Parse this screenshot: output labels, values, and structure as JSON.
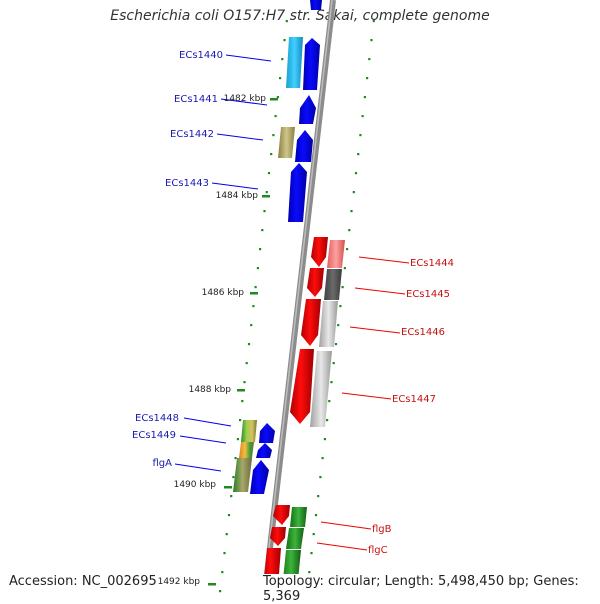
{
  "title": "Escherichia coli O157:H7 str. Sakai, complete genome",
  "accession_text": "Accession: NC_002695",
  "summary_text": "Topology: circular; Length: 5,498,450 bp; Genes: 5,369",
  "colors": {
    "backbone": "#8c8c8c",
    "forward_gene": "#0000ee",
    "reverse_gene": "#ee0000",
    "forward_label": "#1a1ab0",
    "reverse_label": "#c81010",
    "gc_dots": "#1f8a1f"
  },
  "scale_ticks": [
    "1482 kbp",
    "1484 kbp",
    "1486 kbp",
    "1488 kbp",
    "1490 kbp",
    "1492 kbp"
  ],
  "forward_genes": [
    "ECs1440",
    "ECs1441",
    "ECs1442",
    "ECs1443",
    "ECs1448",
    "ECs1449",
    "flgA"
  ],
  "reverse_genes": [
    "ECs1444",
    "ECs1445",
    "ECs1446",
    "ECs1447",
    "flgB",
    "flgC"
  ]
}
